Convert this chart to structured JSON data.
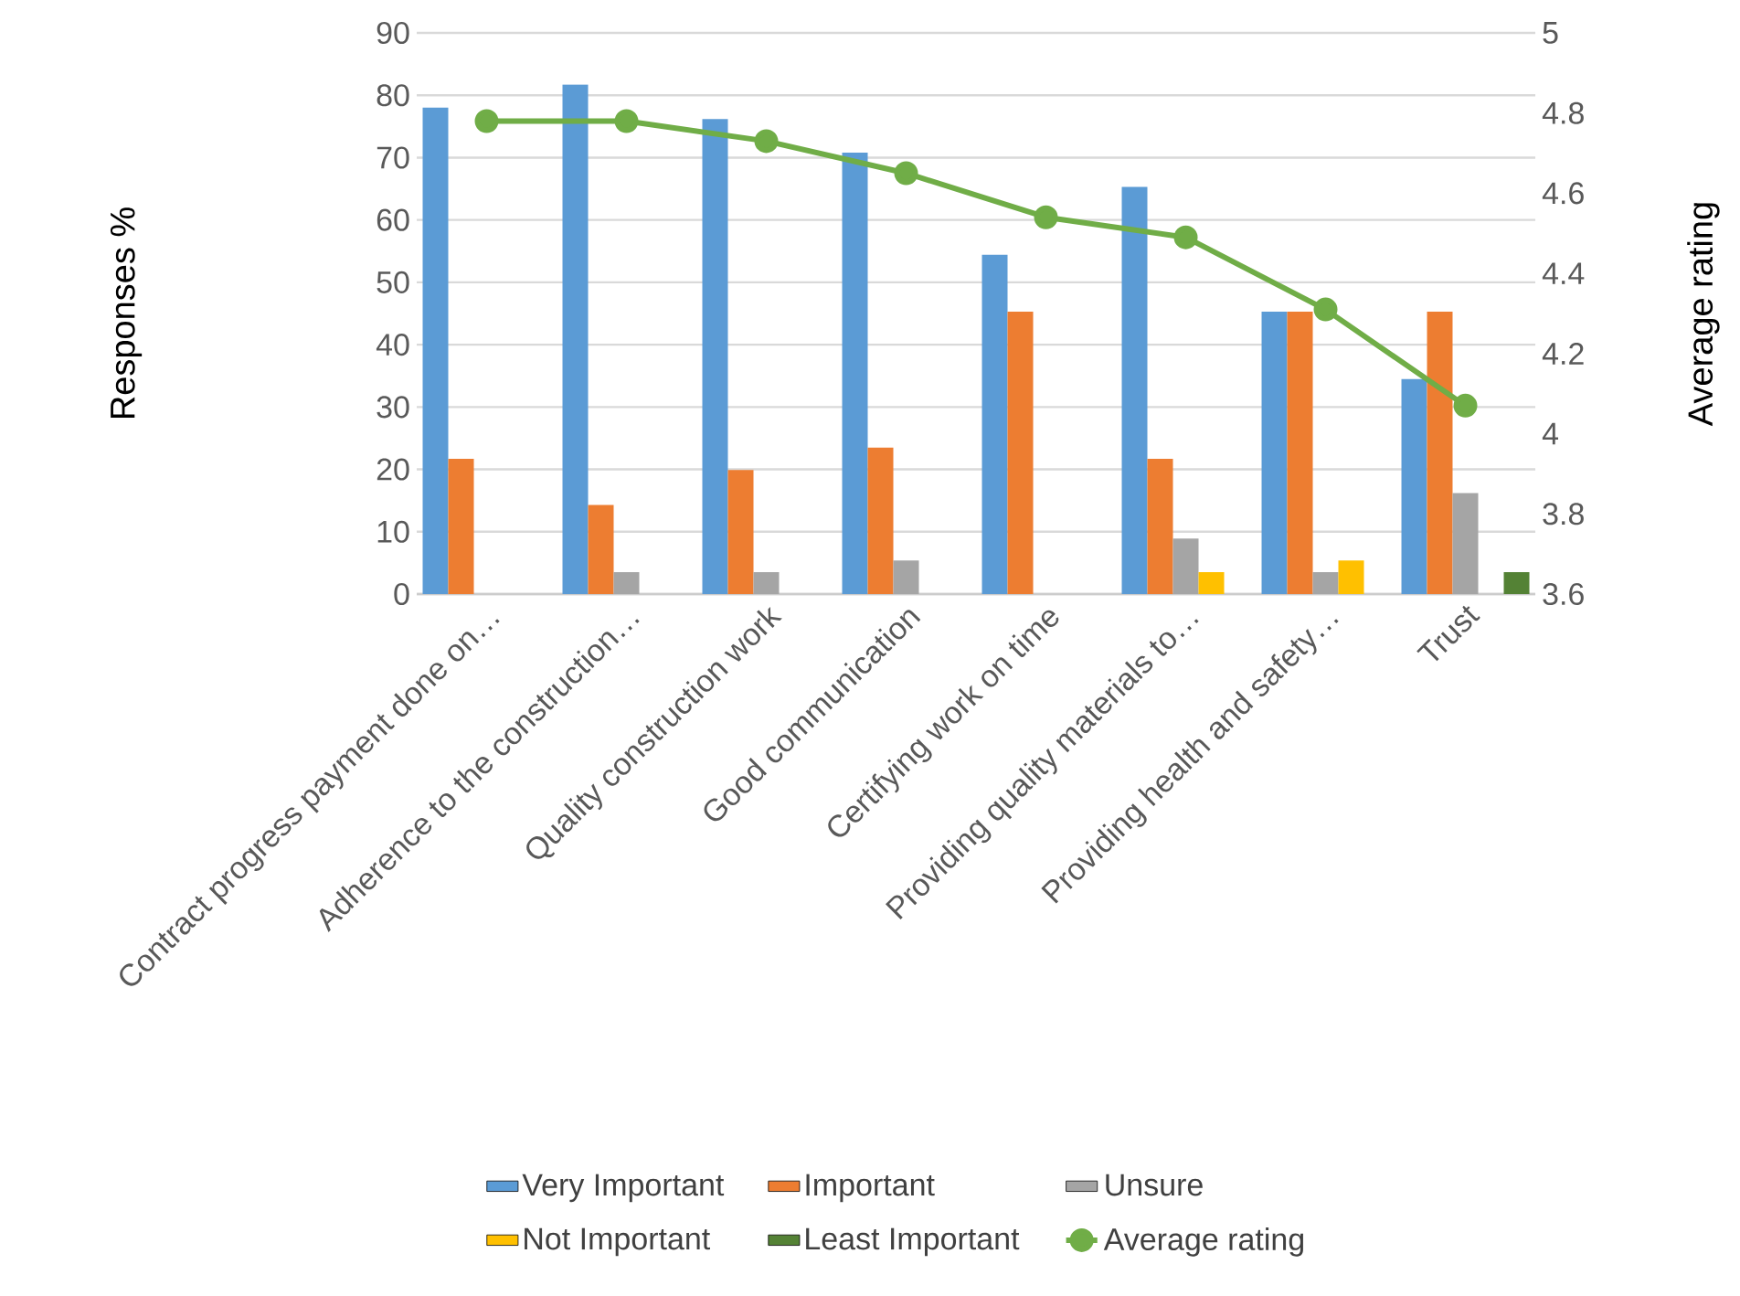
{
  "chart_data": {
    "type": "bar",
    "categories": [
      "Contract progress payment done on…",
      "Adherence to the construction…",
      "Quality construction work",
      "Good communication",
      "Certifying work on time",
      "Providing quality materials to…",
      "Providing health and safety…",
      "Trust"
    ],
    "series": [
      {
        "name": "Very Important",
        "color": "#5b9bd5",
        "values": [
          78.0,
          81.7,
          76.2,
          70.8,
          54.4,
          65.3,
          45.3,
          34.5
        ]
      },
      {
        "name": "Important",
        "color": "#ed7d31",
        "values": [
          21.7,
          14.3,
          19.9,
          23.5,
          45.3,
          21.7,
          45.3,
          45.3
        ]
      },
      {
        "name": "Unsure",
        "color": "#a5a5a5",
        "values": [
          null,
          3.5,
          3.5,
          5.4,
          null,
          8.9,
          3.5,
          16.2
        ]
      },
      {
        "name": "Not Important",
        "color": "#ffc000",
        "values": [
          null,
          null,
          null,
          null,
          null,
          3.5,
          5.4,
          null
        ]
      },
      {
        "name": "Least Important",
        "color": "#548235",
        "values": [
          null,
          null,
          null,
          null,
          null,
          null,
          null,
          3.5
        ]
      },
      {
        "name": "Average rating",
        "type": "line",
        "axis": "y2",
        "marker": "circle",
        "color": "#70ad47",
        "values": [
          4.78,
          4.78,
          4.73,
          4.65,
          4.54,
          4.49,
          4.31,
          4.07
        ]
      }
    ],
    "ylabel": "Responses %",
    "y2label": "Average rating",
    "ylim": [
      0,
      90
    ],
    "yticks": [
      0,
      10,
      20,
      30,
      40,
      50,
      60,
      70,
      80,
      90
    ],
    "y2lim": [
      3.6,
      5
    ],
    "y2ticks": [
      3.6,
      3.8,
      4,
      4.2,
      4.4,
      4.6,
      4.8,
      5
    ],
    "grid": "y",
    "legend": "bottom"
  }
}
